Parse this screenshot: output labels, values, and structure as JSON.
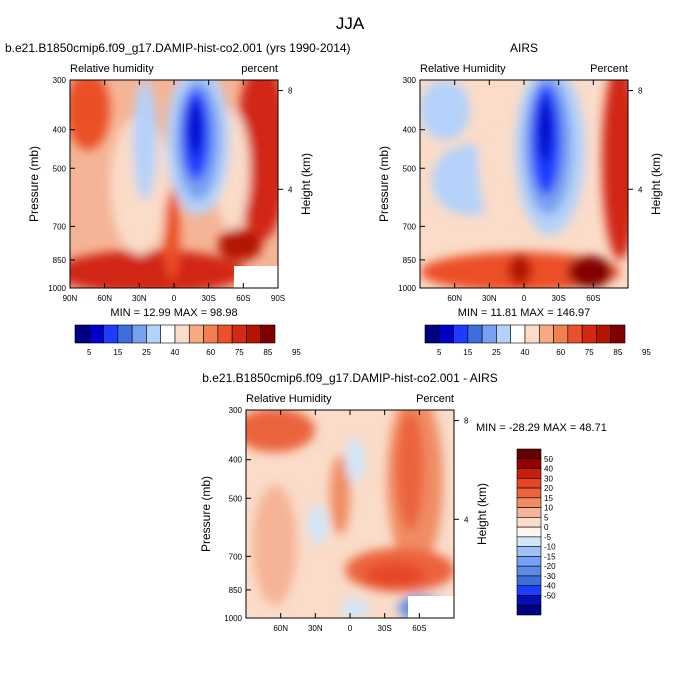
{
  "figure": {
    "title": "JJA"
  },
  "colors": {
    "main_palette": [
      "#000080",
      "#0000c8",
      "#1e3cff",
      "#3c6edc",
      "#78a0f0",
      "#b4d2fa",
      "#ffffff",
      "#fadcc8",
      "#f5aa82",
      "#f08050",
      "#eb5028",
      "#d22814",
      "#b41400",
      "#820000"
    ],
    "diff_palette": [
      "#000080",
      "#0010b4",
      "#1e3cff",
      "#3c6edc",
      "#5a8ce6",
      "#78a0f0",
      "#a0c0f5",
      "#d2e6fa",
      "#fff5f0",
      "#fadcc8",
      "#f5b496",
      "#f08c64",
      "#eb643c",
      "#e64628",
      "#c81e0a",
      "#960000",
      "#640000"
    ]
  },
  "chart_data": [
    {
      "type": "heatmap",
      "title": "b.e21.B1850cmip6.f09_g17.DAMIP-hist-co2.001 (yrs 1990-2014)",
      "left_label": "Relative humidity",
      "right_label": "percent",
      "xlabel": "",
      "ylabel": "Pressure (mb)",
      "y2label": "Height (km)",
      "x_ticks": [
        "90N",
        "60N",
        "30N",
        "0",
        "30S",
        "60S",
        "90S"
      ],
      "x_tick_values": [
        90,
        60,
        30,
        0,
        -30,
        -60,
        -90
      ],
      "xlim": [
        90,
        -90
      ],
      "y_ticks": [
        "300",
        "400",
        "500",
        "700",
        "850",
        "1000"
      ],
      "y_tick_values": [
        300,
        400,
        500,
        700,
        850,
        1000
      ],
      "ylim": [
        1000,
        300
      ],
      "y_scale": "log",
      "y2_ticks": [
        "4",
        "8"
      ],
      "y2_tick_values": [
        4,
        8
      ],
      "min_max_text": "MIN = 12.99  MAX = 98.98",
      "min": 12.99,
      "max": 98.98,
      "colorbar_labels": [
        "5",
        "15",
        "25",
        "40",
        "60",
        "75",
        "85",
        "95"
      ],
      "colorbar_levels": [
        5,
        10,
        15,
        20,
        25,
        30,
        40,
        50,
        60,
        70,
        75,
        80,
        85,
        90,
        95
      ]
    },
    {
      "type": "heatmap",
      "title": "AIRS",
      "left_label": "Relative Humidity",
      "right_label": "Percent",
      "xlabel": "",
      "ylabel": "Pressure (mb)",
      "y2label": "Height (km)",
      "x_ticks": [
        "60N",
        "30N",
        "0",
        "30S",
        "60S"
      ],
      "x_tick_values": [
        60,
        30,
        0,
        -30,
        -60
      ],
      "xlim": [
        90,
        -90
      ],
      "y_ticks": [
        "300",
        "400",
        "500",
        "700",
        "850",
        "1000"
      ],
      "y_tick_values": [
        300,
        400,
        500,
        700,
        850,
        1000
      ],
      "ylim": [
        1000,
        300
      ],
      "y_scale": "log",
      "y2_ticks": [
        "4",
        "8"
      ],
      "y2_tick_values": [
        4,
        8
      ],
      "min_max_text": "MIN = 11.81  MAX = 146.97",
      "min": 11.81,
      "max": 146.97,
      "colorbar_labels": [
        "5",
        "15",
        "25",
        "40",
        "60",
        "75",
        "85",
        "95"
      ],
      "colorbar_levels": [
        5,
        10,
        15,
        20,
        25,
        30,
        40,
        50,
        60,
        70,
        75,
        80,
        85,
        90,
        95
      ]
    },
    {
      "type": "heatmap",
      "title": "b.e21.B1850cmip6.f09_g17.DAMIP-hist-co2.001 - AIRS",
      "left_label": "Relative Humidity",
      "right_label": "Percent",
      "xlabel": "",
      "ylabel": "Pressure (mb)",
      "y2label": "Height (km)",
      "x_ticks": [
        "60N",
        "30N",
        "0",
        "30S",
        "60S"
      ],
      "x_tick_values": [
        60,
        30,
        0,
        -30,
        -60
      ],
      "xlim": [
        90,
        -90
      ],
      "y_ticks": [
        "300",
        "400",
        "500",
        "700",
        "850",
        "1000"
      ],
      "y_tick_values": [
        300,
        400,
        500,
        700,
        850,
        1000
      ],
      "ylim": [
        1000,
        300
      ],
      "y_scale": "log",
      "y2_ticks": [
        "4",
        "8"
      ],
      "y2_tick_values": [
        4,
        8
      ],
      "min_max_text": "MIN = -28.29  MAX =  48.71",
      "min": -28.29,
      "max": 48.71,
      "colorbar_labels": [
        "50",
        "40",
        "30",
        "20",
        "15",
        "10",
        "5",
        "0",
        "-5",
        "-10",
        "-15",
        "-20",
        "-30",
        "-40",
        "-50"
      ],
      "colorbar_levels": [
        -50,
        -40,
        -30,
        -20,
        -15,
        -10,
        -5,
        0,
        5,
        10,
        15,
        20,
        30,
        40,
        50
      ]
    }
  ]
}
